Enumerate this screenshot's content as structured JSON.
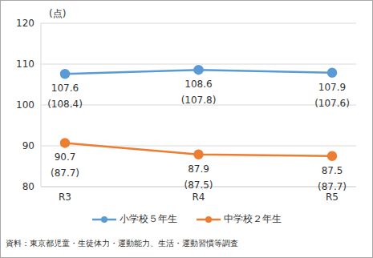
{
  "chart_data": {
    "type": "line",
    "y_label": "(点)",
    "source": "資料：東京都児童・生徒体力・運動能力、生活・運動習慣等調査",
    "categories": [
      "R3",
      "R4",
      "R5"
    ],
    "series": [
      {
        "name": "小学校５年生",
        "color": "#5b9bd5",
        "marker": "circle",
        "values": [
          107.6,
          108.6,
          107.9
        ],
        "reference_values": [
          108.4,
          107.8,
          107.6
        ],
        "reference_value_labels": [
          "(108.4)",
          "(107.8)",
          "(107.6)"
        ]
      },
      {
        "name": "中学校２年生",
        "color": "#ed7d31",
        "marker": "circle",
        "values": [
          90.7,
          87.9,
          87.5
        ],
        "reference_values": [
          87.7,
          87.5,
          87.7
        ],
        "reference_value_labels": [
          "(87.7)",
          "(87.5)",
          "(87.7)"
        ]
      }
    ],
    "ylim": [
      80,
      120
    ],
    "yticks": [
      80,
      90,
      100,
      110,
      120
    ],
    "grid": true,
    "data_labels": true,
    "legend": "bottom"
  }
}
